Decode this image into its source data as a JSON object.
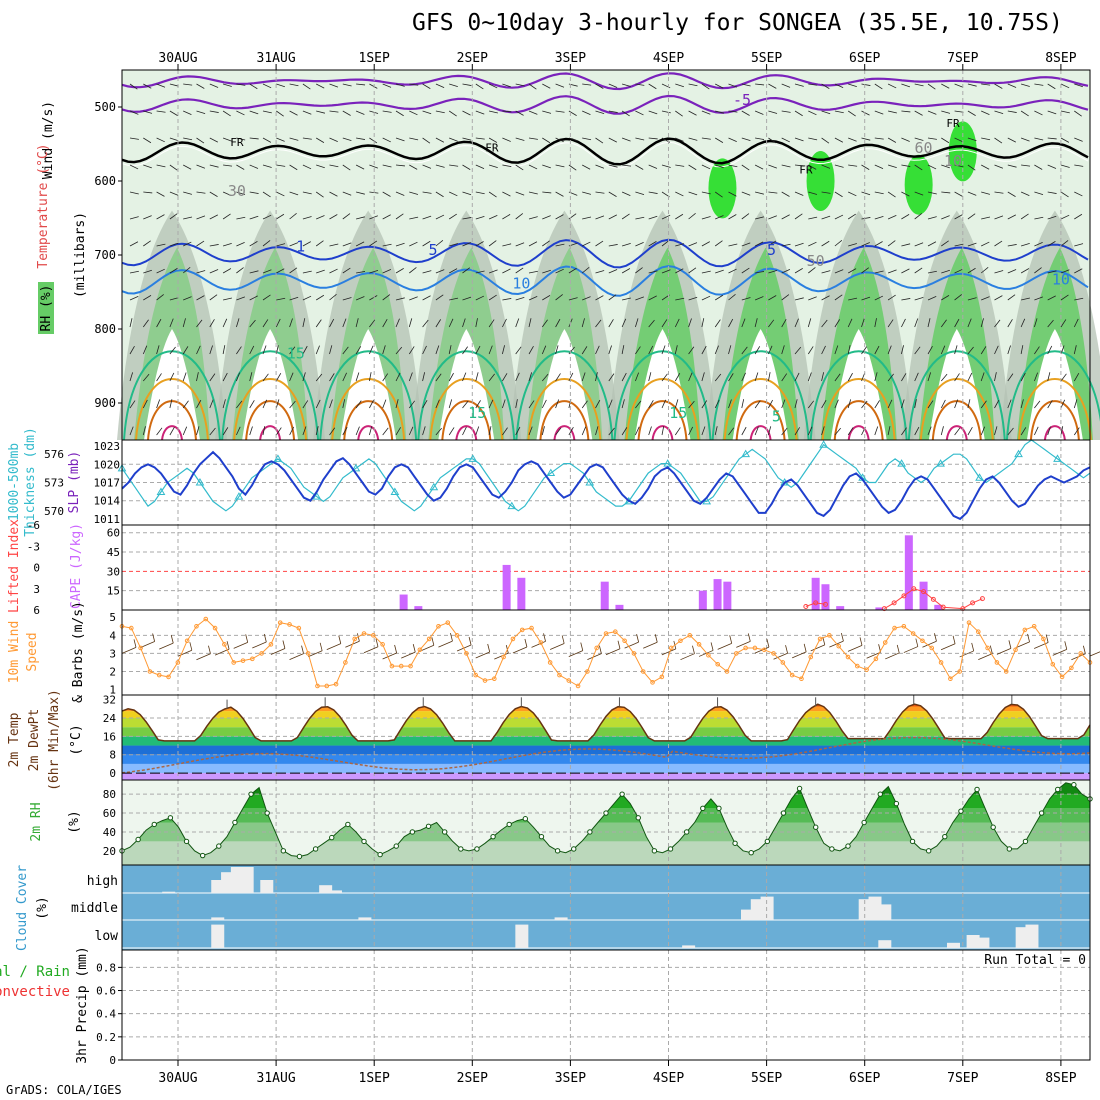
{
  "title": "GFS 0~10day 3-hourly for SONGEA (35.5E, 10.75S)",
  "credit": "GrADS: COLA/IGES",
  "dates": [
    "30AUG",
    "31AUG",
    "1SEP",
    "2SEP",
    "3SEP",
    "4SEP",
    "5SEP",
    "6SEP",
    "7SEP",
    "8SEP"
  ],
  "colors": {
    "rh_light": "#e4f2e4",
    "rh_mid": "#b8d8b8",
    "rh_grey": "#b4c2b4",
    "rh_green": "#66cc66",
    "rh_bright": "#22dd22",
    "thickness": "#33bbcc",
    "slp": "#1f3fcc",
    "cape": "#cc66ff",
    "lifted": "#ff4444",
    "wind10": "#ff9933",
    "cloud_bg": "#6aaed6",
    "cloud_fill": "#eeeeee",
    "rh2m": "#33aa33"
  },
  "chart_data": [
    {
      "type": "heatmap",
      "name": "upper_air",
      "ylabel_lines": [
        "RH (%)",
        "Temperature (°C)",
        "Wind (m/s)"
      ],
      "ylabel_units": "(millibars)",
      "yticks": [
        500,
        600,
        700,
        800,
        900
      ],
      "ylim": [
        450,
        950
      ],
      "contour_labels": [
        "FR",
        "FR",
        "FR",
        "FR",
        "-5",
        "1",
        "5",
        "10",
        "15",
        "15",
        "15",
        "5",
        "5",
        "10",
        "30",
        "50",
        "60",
        "10"
      ]
    },
    {
      "type": "line",
      "name": "thickness_slp",
      "ylabel_left": "1000-500mb Thickness (dm)",
      "ylabel_right": "SLP (mb)",
      "yticks_left": [
        570,
        573,
        576
      ],
      "yticks_right": [
        1011,
        1014,
        1017,
        1020,
        1023
      ],
      "series": [
        {
          "name": "Thickness",
          "unit": "dm",
          "values": [
            574.5,
            573.5,
            572.5,
            571.5,
            570.5,
            571,
            572,
            573,
            573.5,
            574,
            574.5,
            574,
            573,
            572,
            571,
            570.5,
            570,
            570.5,
            571.5,
            572.5,
            573.5,
            574,
            574.5,
            575,
            575.5,
            575,
            574.5,
            573.5,
            572.5,
            572,
            571.5,
            571,
            571.5,
            572.5,
            573.5,
            574,
            574.5,
            575,
            575.5,
            575,
            574,
            573,
            572,
            571,
            570.5,
            570,
            570.5,
            571.5,
            572.5,
            573.5,
            574,
            574.5,
            575,
            575.5,
            575.5,
            575,
            574,
            573,
            572,
            571,
            570.5,
            570,
            570.5,
            571.5,
            572.5,
            573.5,
            574,
            574.5,
            575,
            575,
            574.5,
            574,
            573,
            572,
            571.5,
            571,
            570.5,
            570.5,
            571,
            572,
            573,
            574,
            574.5,
            575,
            575,
            574.5,
            574,
            573,
            572,
            571,
            571,
            571.5,
            572.5,
            573.5,
            574.5,
            575.5,
            576,
            576.5,
            576,
            575.5,
            574.5,
            573.5,
            573,
            572.5,
            573,
            574,
            575,
            576,
            577,
            576.5,
            576,
            575.5,
            575,
            574.5,
            573.5,
            573,
            573,
            574,
            575,
            575.5,
            575,
            574,
            573.5,
            573,
            573.5,
            574.5,
            575,
            575.5,
            576,
            576,
            575.5,
            574.5,
            573.5,
            573,
            573.5,
            574,
            574.5,
            575,
            576,
            577,
            577.5,
            577,
            576.5,
            576,
            575.5,
            575,
            574.5,
            574,
            573.5,
            574
          ]
        },
        {
          "name": "SLP",
          "unit": "mb",
          "values": [
            1016,
            1017,
            1018.5,
            1019.5,
            1020,
            1019.5,
            1018.5,
            1017,
            1015.5,
            1015,
            1016.5,
            1018.5,
            1020,
            1021,
            1022,
            1021,
            1019.5,
            1018,
            1016,
            1015,
            1016.5,
            1018.5,
            1020,
            1020.5,
            1020,
            1019,
            1017.5,
            1016,
            1014.5,
            1014,
            1015.5,
            1017.5,
            1019,
            1020.5,
            1021,
            1020,
            1018.5,
            1017,
            1015.5,
            1015,
            1016,
            1018,
            1019.5,
            1020,
            1019.5,
            1018,
            1016.5,
            1015,
            1014,
            1014.5,
            1016,
            1018,
            1019.5,
            1020,
            1019.5,
            1018,
            1016.5,
            1015,
            1014.5,
            1015.5,
            1017,
            1019,
            1020,
            1020.5,
            1020,
            1018.5,
            1017,
            1015.5,
            1014.5,
            1015,
            1016.5,
            1018,
            1019.5,
            1020,
            1019.5,
            1018,
            1016.5,
            1015,
            1014,
            1013.5,
            1014.5,
            1016,
            1018,
            1019,
            1019.5,
            1018.5,
            1017,
            1015.5,
            1014,
            1013.5,
            1014.5,
            1016,
            1017.5,
            1018.5,
            1018,
            1016.5,
            1015,
            1013.5,
            1012,
            1012,
            1013.5,
            1015.5,
            1017,
            1017.5,
            1016.5,
            1015,
            1013.5,
            1012,
            1011.5,
            1012.5,
            1014.5,
            1016.5,
            1018,
            1018.5,
            1017.5,
            1016,
            1014.5,
            1013,
            1012,
            1012.5,
            1014,
            1016,
            1017.5,
            1018,
            1017.5,
            1016,
            1014.5,
            1013,
            1011.5,
            1011,
            1012,
            1014,
            1016,
            1017.5,
            1018,
            1017,
            1015.5,
            1014,
            1013,
            1013.5,
            1015,
            1016.5,
            1017.5,
            1018,
            1017.5,
            1017,
            1017.5,
            1018,
            1019,
            1019.5
          ]
        }
      ]
    },
    {
      "type": "bar",
      "name": "cape_lifted",
      "ylabel_left": "Lifted Index",
      "ylabel_right": "CAPE (J/kg)",
      "yticks_left": [
        -6,
        -3,
        0,
        3,
        6
      ],
      "yticks_right": [
        15,
        30,
        45,
        60
      ],
      "cape_bars": [
        [
          2.3,
          12
        ],
        [
          2.45,
          3
        ],
        [
          3.35,
          35
        ],
        [
          3.5,
          25
        ],
        [
          4.35,
          22
        ],
        [
          4.5,
          4
        ],
        [
          5.35,
          15
        ],
        [
          5.5,
          24
        ],
        [
          5.6,
          22
        ],
        [
          6.5,
          25
        ],
        [
          6.6,
          20
        ],
        [
          6.75,
          3
        ],
        [
          7.15,
          2
        ],
        [
          7.45,
          58
        ],
        [
          7.6,
          22
        ],
        [
          7.75,
          4
        ]
      ],
      "lifted_points": [
        [
          6.4,
          5.5
        ],
        [
          6.5,
          5
        ],
        [
          6.6,
          5.2
        ],
        [
          7.2,
          5.8
        ],
        [
          7.3,
          5
        ],
        [
          7.4,
          4
        ],
        [
          7.5,
          3
        ],
        [
          7.6,
          3.4
        ],
        [
          7.7,
          4.5
        ],
        [
          7.8,
          5.6
        ],
        [
          8.0,
          5.8
        ],
        [
          8.1,
          5
        ],
        [
          8.2,
          4.4
        ]
      ]
    },
    {
      "type": "line",
      "name": "wind10m",
      "ylabel": "10m Wind Speed & Barbs (m/s)",
      "yticks": [
        1,
        2,
        3,
        4,
        5
      ],
      "series": [
        {
          "name": "Speed",
          "values": [
            4.5,
            4.4,
            3.3,
            2.0,
            1.8,
            1.7,
            2.5,
            3.7,
            4.5,
            4.9,
            4.4,
            3.5,
            2.5,
            2.6,
            2.7,
            3.0,
            3.5,
            4.7,
            4.6,
            4.4,
            3.0,
            1.2,
            1.2,
            1.3,
            2.5,
            3.8,
            4.1,
            4.0,
            3.5,
            2.3,
            2.3,
            2.3,
            3.2,
            3.8,
            4.5,
            4.7,
            4.0,
            3.0,
            1.8,
            1.5,
            1.6,
            2.8,
            3.8,
            4.3,
            4.4,
            3.6,
            2.5,
            1.8,
            1.5,
            1.2,
            2.0,
            3.3,
            4.1,
            4.2,
            3.7,
            3.0,
            2.0,
            1.4,
            1.7,
            3.3,
            3.7,
            4.0,
            3.5,
            2.9,
            2.4,
            2.0,
            3.0,
            3.3,
            3.3,
            3.2,
            3.0,
            2.5,
            1.8,
            1.6,
            2.8,
            3.8,
            4.0,
            3.4,
            2.8,
            2.3,
            2.1,
            2.7,
            3.6,
            4.4,
            4.5,
            4.1,
            3.7,
            3.3,
            2.5,
            1.6,
            2.0,
            4.7,
            4.2,
            3.3,
            2.5,
            2.0,
            3.2,
            4.3,
            4.5,
            3.8,
            2.4,
            1.7,
            2.2,
            3.0,
            2.5
          ]
        }
      ]
    },
    {
      "type": "area",
      "name": "temp2m",
      "ylabel": "2m Temp 2m DewPt (6hr Min/Max) (°C)",
      "yticks": [
        0,
        8,
        16,
        24,
        32
      ],
      "daily_max": [
        28,
        29,
        29,
        29,
        29,
        29,
        29,
        30,
        30
      ],
      "daily_min": [
        14,
        14,
        14,
        14,
        14,
        14,
        14,
        15,
        15
      ]
    },
    {
      "type": "area",
      "name": "rh2m",
      "ylabel": "2m RH (%)",
      "yticks": [
        20,
        40,
        60,
        80
      ],
      "series": [
        {
          "name": "RH",
          "values": [
            20,
            24,
            32,
            42,
            48,
            52,
            55,
            45,
            30,
            20,
            15,
            18,
            25,
            35,
            50,
            65,
            80,
            87,
            60,
            40,
            20,
            15,
            14,
            16,
            22,
            28,
            34,
            42,
            48,
            40,
            30,
            22,
            16,
            20,
            25,
            35,
            40,
            42,
            46,
            50,
            40,
            30,
            22,
            20,
            22,
            28,
            35,
            42,
            48,
            52,
            54,
            45,
            35,
            25,
            20,
            18,
            22,
            30,
            40,
            50,
            60,
            70,
            80,
            70,
            55,
            35,
            20,
            18,
            22,
            30,
            40,
            50,
            65,
            75,
            65,
            45,
            28,
            20,
            18,
            22,
            30,
            45,
            60,
            75,
            86,
            65,
            45,
            28,
            22,
            20,
            25,
            35,
            50,
            65,
            80,
            88,
            70,
            48,
            30,
            22,
            20,
            25,
            35,
            50,
            62,
            75,
            85,
            65,
            45,
            30,
            22,
            22,
            30,
            45,
            60,
            75,
            85,
            92,
            90,
            80,
            75
          ]
        }
      ]
    },
    {
      "type": "bar",
      "name": "cloud_cover",
      "ylabel": "Cloud Cover (%)",
      "layer_labels": [
        "high",
        "middle",
        "low"
      ],
      "high_bars": [
        [
          0.4,
          0.05
        ],
        [
          0.9,
          0.5
        ],
        [
          1.0,
          0.8
        ],
        [
          1.1,
          1.0
        ],
        [
          1.2,
          1.0
        ],
        [
          1.4,
          0.5
        ],
        [
          2.0,
          0.3
        ],
        [
          2.1,
          0.1
        ]
      ],
      "middle_bars": [
        [
          0.9,
          0.1
        ],
        [
          2.4,
          0.1
        ],
        [
          4.4,
          0.1
        ],
        [
          6.3,
          0.4
        ],
        [
          6.4,
          0.8
        ],
        [
          6.5,
          0.9
        ],
        [
          7.5,
          0.8
        ],
        [
          7.6,
          0.9
        ],
        [
          7.7,
          0.6
        ]
      ],
      "low_bars": [
        [
          0.9,
          0.9
        ],
        [
          4.0,
          0.9
        ],
        [
          5.7,
          0.1
        ],
        [
          7.7,
          0.3
        ],
        [
          8.4,
          0.2
        ],
        [
          8.6,
          0.5
        ],
        [
          8.7,
          0.4
        ],
        [
          9.1,
          0.8
        ],
        [
          9.2,
          0.9
        ]
      ]
    },
    {
      "type": "line",
      "name": "precip",
      "ylabel_lines": [
        "Total / Rain",
        "Convective"
      ],
      "ylabel": "3hr Precip (mm)",
      "yticks": [
        0,
        0.2,
        0.4,
        0.6,
        0.8
      ],
      "run_total_label": "Run Total = 0",
      "values": []
    }
  ]
}
